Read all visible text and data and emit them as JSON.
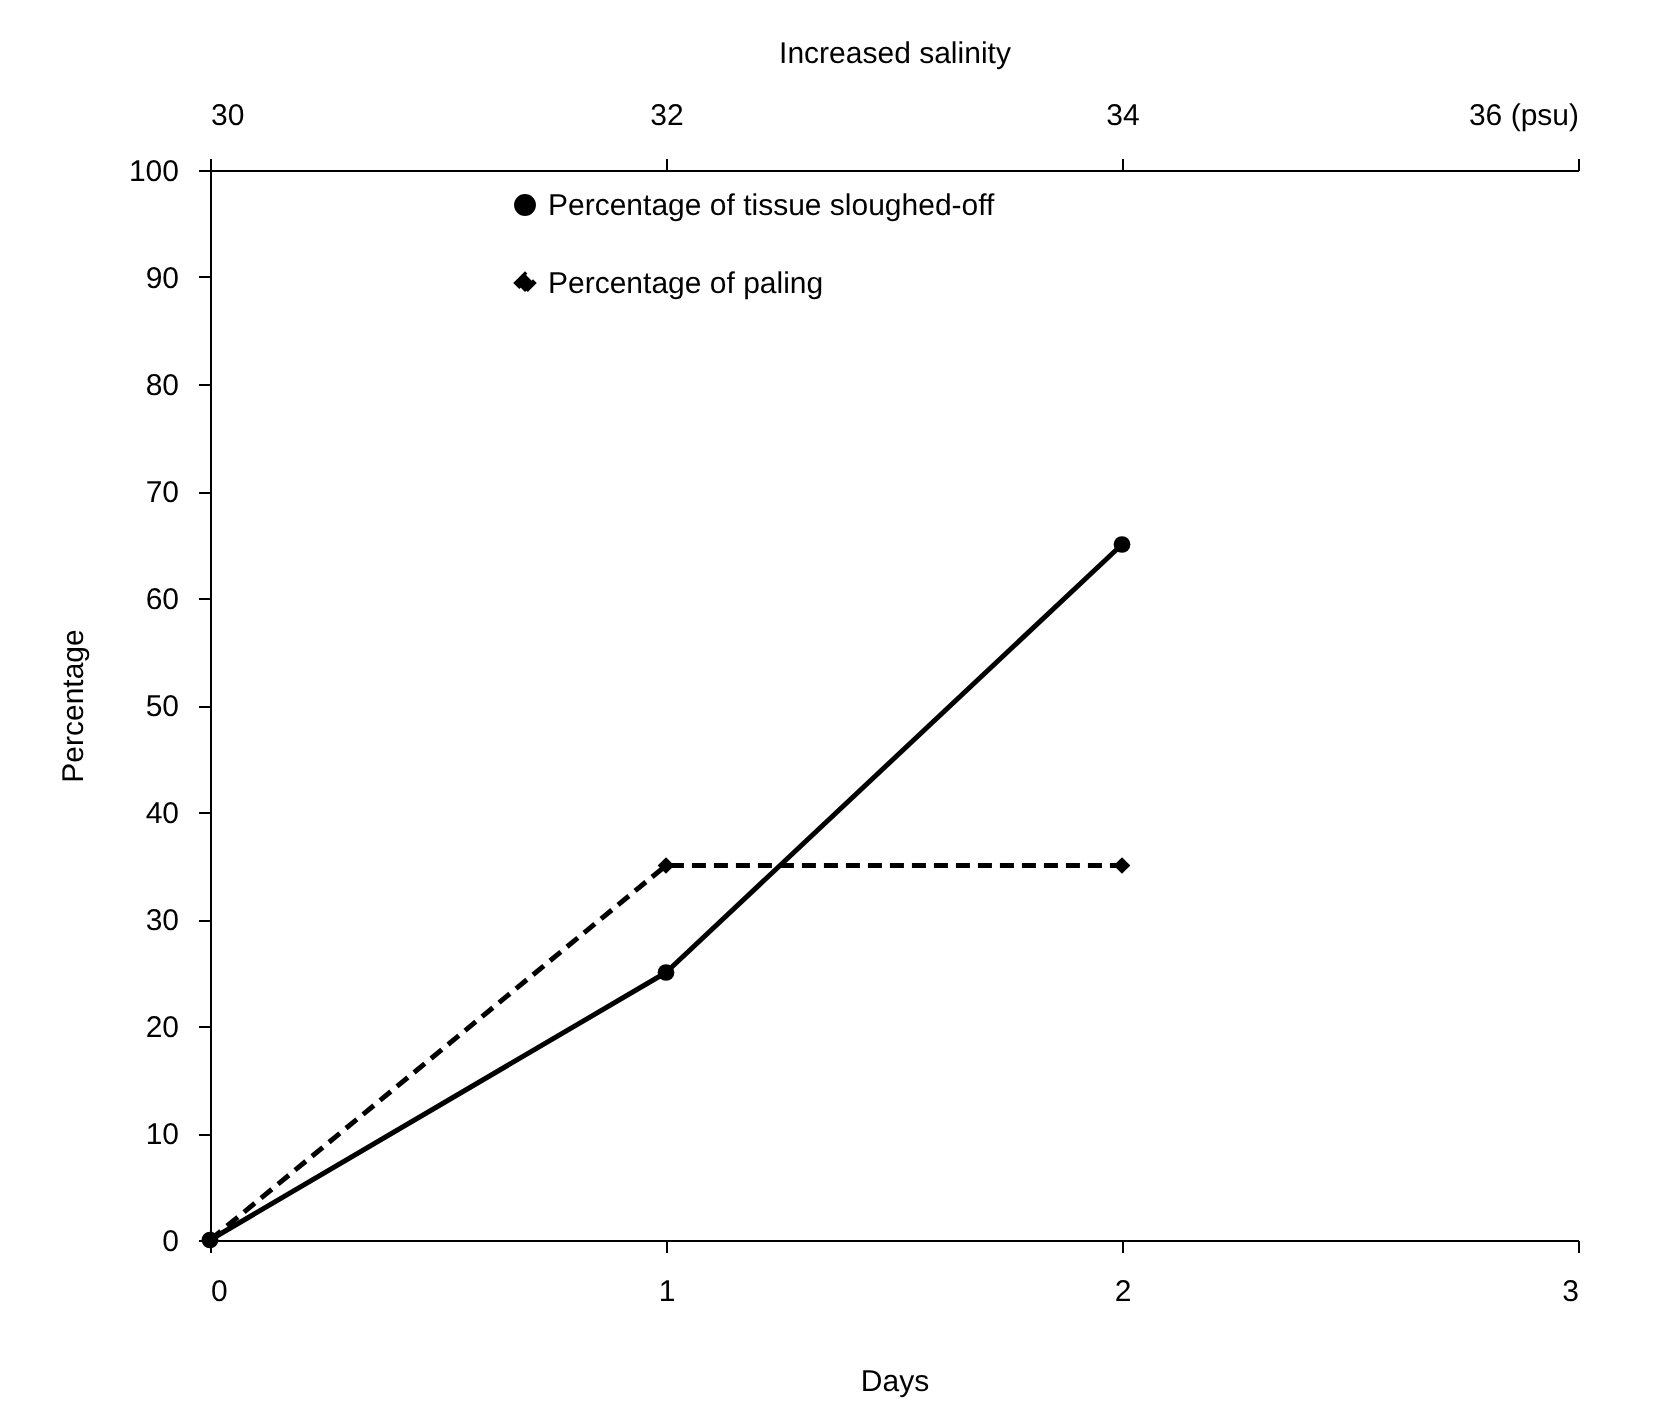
{
  "chart_data": {
    "type": "line",
    "xlabel": "Days",
    "ylabel": "Percentage",
    "x2label": "Increased salinity",
    "x": [
      0,
      1,
      2
    ],
    "series": [
      {
        "name": "Percentage of tissue sloughed-off",
        "color": "#000000",
        "values": [
          0,
          25,
          65
        ],
        "marker": "circle",
        "line_style": "solid"
      },
      {
        "name": "Percentage of paling",
        "color": "#000000",
        "values": [
          0,
          35,
          35
        ],
        "marker": "diamond",
        "line_style": "dashed"
      }
    ],
    "xlim": [
      0,
      3
    ],
    "xticks": [
      0,
      1,
      2,
      3
    ],
    "x2lim": [
      30,
      36
    ],
    "x2ticks": [
      30,
      32,
      34,
      {
        "value": 36,
        "label": "36 (psu)"
      }
    ],
    "ylim": [
      0,
      100
    ],
    "yticks": [
      0,
      10,
      20,
      30,
      40,
      50,
      60,
      70,
      80,
      90,
      100
    ],
    "grid": false,
    "legend": "top"
  }
}
